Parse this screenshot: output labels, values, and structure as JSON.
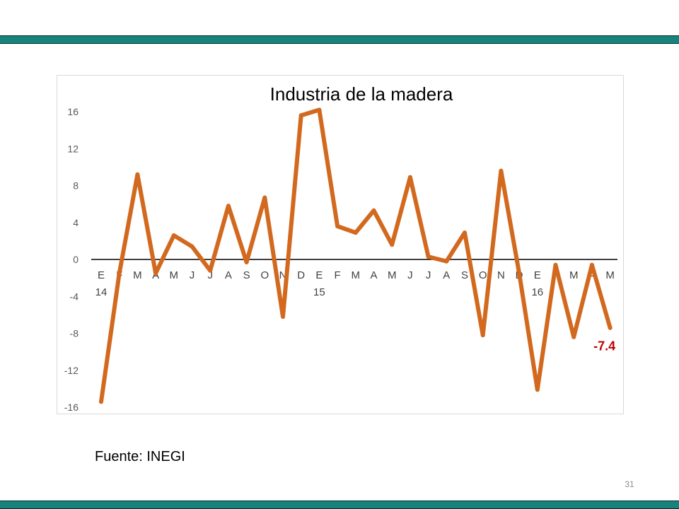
{
  "slide": {
    "number": "31",
    "source_note": "Fuente: INEGI"
  },
  "colors": {
    "accent_band": "#17837d",
    "line": "#d2691e",
    "last_value_label": "#c00000",
    "axis": "#000000",
    "tick_text": "#595959"
  },
  "chart_data": {
    "type": "line",
    "title": "Industria de la madera",
    "xlabel": "",
    "ylabel": "",
    "ylim": [
      -16,
      16
    ],
    "y_ticks": [
      16,
      12,
      8,
      4,
      0,
      -4,
      -8,
      -12,
      -16
    ],
    "grid": false,
    "legend": "none",
    "categories": [
      "E",
      "F",
      "M",
      "A",
      "M",
      "J",
      "J",
      "A",
      "S",
      "O",
      "N",
      "D",
      "E",
      "F",
      "M",
      "A",
      "M",
      "J",
      "J",
      "A",
      "S",
      "O",
      "N",
      "D",
      "E",
      "F",
      "M",
      "A",
      "M"
    ],
    "year_labels": [
      {
        "index": 0,
        "text": "14"
      },
      {
        "index": 12,
        "text": "15"
      },
      {
        "index": 24,
        "text": "16"
      }
    ],
    "series": [
      {
        "values": [
          -15.4,
          -1.5,
          9.2,
          -1.5,
          2.6,
          1.4,
          -1.2,
          5.8,
          -0.3,
          6.7,
          -6.2,
          15.6,
          16.2,
          3.6,
          2.9,
          5.3,
          1.6,
          8.9,
          0.3,
          -0.2,
          2.9,
          -8.2,
          9.6,
          -1.5,
          -14.1,
          -0.6,
          -8.4,
          -0.6,
          -7.4
        ]
      }
    ],
    "last_value_label": "-7.4"
  }
}
